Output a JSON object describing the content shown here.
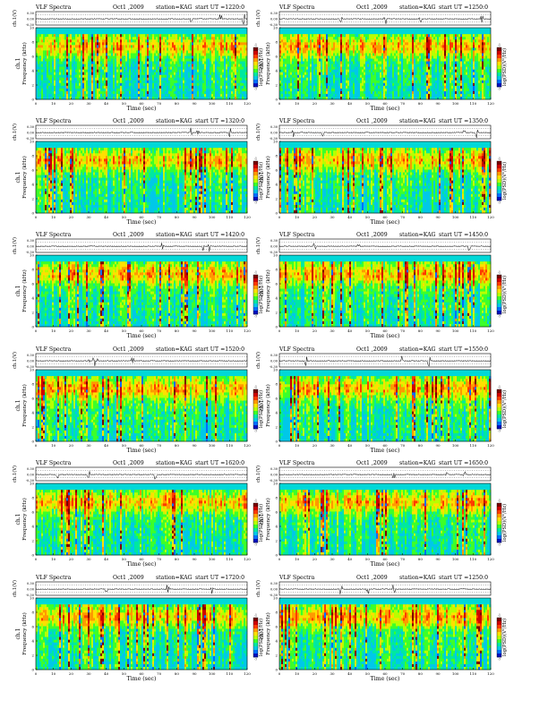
{
  "page": {
    "background": "#ffffff"
  },
  "colors": {
    "colorbar": [
      "#7a0000",
      "#d00000",
      "#ff3a00",
      "#ff9a00",
      "#ffe000",
      "#b8ff00",
      "#3cff2a",
      "#00e8a0",
      "#00c8e8",
      "#0070ff",
      "#0010c0"
    ],
    "trace": "#000000",
    "bg_band": "#00d8d8"
  },
  "chart_data": [
    {
      "type": "heatmap",
      "title": "VLF Spectra",
      "date": "Oct1 ,2009",
      "station": "station=KAG",
      "start": "start UT =1220:0",
      "xlabel": "Time (sec)",
      "ylabel": "Frequency (kHz)",
      "ch_label": "ch.1",
      "trace_label": "ch.1(V)",
      "cb_label": "log(PSD)(V²/Hz)",
      "xlim": [
        0,
        120
      ],
      "ylim": [
        0,
        10
      ],
      "xticks": [
        "0",
        "10",
        "20",
        "30",
        "40",
        "50",
        "60",
        "70",
        "80",
        "90",
        "100",
        "110",
        "120"
      ],
      "yticks": [
        "0",
        "2",
        "4",
        "6",
        "8",
        "10"
      ],
      "trace_ticks": [
        "0.30",
        "0.00",
        "-0.30"
      ],
      "trace_ylim": [
        -0.3,
        0.3
      ],
      "cb_ticks": [
        "-1",
        "-7"
      ],
      "cb_ticks_top": [
        "-1",
        ""
      ],
      "spikes_x": [
        88,
        105,
        118
      ]
    },
    {
      "type": "heatmap",
      "title": "VLF Spectra",
      "date": "Oct1 ,2009",
      "station": "station=KAG",
      "start": "start UT =1250:0",
      "xlabel": "Time (sec)",
      "ylabel": "Frequency (kHz)",
      "ch_label": "ch.1",
      "trace_label": "ch.1(V)",
      "cb_label": "log(PSD)(V²/Hz)",
      "xlim": [
        0,
        120
      ],
      "ylim": [
        0,
        10
      ],
      "xticks": [
        "0",
        "10",
        "20",
        "30",
        "40",
        "50",
        "60",
        "70",
        "80",
        "90",
        "100",
        "110",
        "120"
      ],
      "yticks": [
        "0",
        "2",
        "4",
        "6",
        "8",
        "10"
      ],
      "trace_ticks": [
        "0.30",
        "0.00",
        "-0.30"
      ],
      "trace_ylim": [
        -0.3,
        0.3
      ],
      "cb_ticks": [
        "-1",
        "-7"
      ],
      "cb_ticks_top": [
        "-1",
        ""
      ],
      "spikes_x": [
        35,
        60,
        80,
        115
      ]
    },
    {
      "type": "heatmap",
      "title": "VLF Spectra",
      "date": "Oct1 ,2009",
      "station": "station=KAG",
      "start": "start UT =1320:0",
      "xlabel": "Time (sec)",
      "ylabel": "Frequency (kHz)",
      "ch_label": "ch.1",
      "trace_label": "ch.1(V)",
      "cb_label": "log(PSD)(V²/Hz)",
      "xlim": [
        0,
        120
      ],
      "ylim": [
        0,
        10
      ],
      "xticks": [
        "0",
        "10",
        "20",
        "30",
        "40",
        "50",
        "60",
        "70",
        "80",
        "90",
        "100",
        "110",
        "120"
      ],
      "yticks": [
        "0",
        "2",
        "4",
        "6",
        "8",
        "10"
      ],
      "trace_ticks": [
        "0.30",
        "0.00",
        "-0.30"
      ],
      "trace_ylim": [
        -0.3,
        0.3
      ],
      "cb_ticks": [
        "-1",
        "-7"
      ],
      "cb_ticks_top": [
        "-1",
        ""
      ],
      "spikes_x": [
        88,
        92,
        110
      ]
    },
    {
      "type": "heatmap",
      "title": "VLF Spectra",
      "date": "Oct1 ,2009",
      "station": "station=KAG",
      "start": "start UT =1350:0",
      "xlabel": "Time (sec)",
      "ylabel": "Frequency (kHz)",
      "ch_label": "ch.1",
      "trace_label": "ch.1(V)",
      "cb_label": "log(PSD)(V²/Hz)",
      "xlim": [
        0,
        120
      ],
      "ylim": [
        0,
        10
      ],
      "xticks": [
        "0",
        "10",
        "20",
        "30",
        "40",
        "50",
        "60",
        "70",
        "80",
        "90",
        "100",
        "110",
        "120"
      ],
      "yticks": [
        "0",
        "2",
        "4",
        "6",
        "8",
        "10"
      ],
      "trace_ticks": [
        "0.30",
        "0.00",
        "-0.30"
      ],
      "trace_ylim": [
        -0.3,
        0.3
      ],
      "cb_ticks": [
        "-1",
        "-7"
      ],
      "cb_ticks_top": [
        "-1",
        ""
      ],
      "spikes_x": [
        8,
        25,
        105,
        112
      ]
    },
    {
      "type": "heatmap",
      "title": "VLF Spectra",
      "date": "Oct1 ,2009",
      "station": "station=KAG",
      "start": "start UT =1420:0",
      "xlabel": "Time (sec)",
      "ylabel": "Frequency (kHz)",
      "ch_label": "ch.1",
      "trace_label": "ch.1(V)",
      "cb_label": "log(PSD)(V²/Hz)",
      "xlim": [
        0,
        120
      ],
      "ylim": [
        0,
        10
      ],
      "xticks": [
        "0",
        "10",
        "20",
        "30",
        "40",
        "50",
        "60",
        "70",
        "80",
        "90",
        "100",
        "110",
        "120"
      ],
      "yticks": [
        "0",
        "2",
        "4",
        "6",
        "8",
        "10"
      ],
      "trace_ticks": [
        "0.30",
        "0.00",
        "-0.30"
      ],
      "trace_ylim": [
        -0.3,
        0.3
      ],
      "cb_ticks": [
        "-1",
        "-7"
      ],
      "cb_ticks_top": [
        "-1",
        ""
      ],
      "spikes_x": [
        72,
        95,
        98
      ]
    },
    {
      "type": "heatmap",
      "title": "VLF Spectra",
      "date": "Oct1 ,2009",
      "station": "station=KAG",
      "start": "start UT =1450:0",
      "xlabel": "Time (sec)",
      "ylabel": "Frequency (kHz)",
      "ch_label": "ch.1",
      "trace_label": "ch.1(V)",
      "cb_label": "log(PSD)(V²/Hz)",
      "xlim": [
        0,
        120
      ],
      "ylim": [
        0,
        10
      ],
      "xticks": [
        "0",
        "10",
        "20",
        "30",
        "40",
        "50",
        "60",
        "70",
        "80",
        "90",
        "100",
        "110",
        "120"
      ],
      "yticks": [
        "0",
        "2",
        "4",
        "6",
        "8",
        "10"
      ],
      "trace_ticks": [
        "0.30",
        "0.00",
        "-0.30"
      ],
      "trace_ylim": [
        -0.3,
        0.3
      ],
      "cb_ticks": [
        "-1",
        "-7"
      ],
      "cb_ticks_top": [
        "-1",
        ""
      ],
      "spikes_x": [
        20,
        45,
        108
      ]
    },
    {
      "type": "heatmap",
      "title": "VLF Spectra",
      "date": "Oct1 ,2009",
      "station": "station=KAG",
      "start": "start UT =1520:0",
      "xlabel": "Time (sec)",
      "ylabel": "Frequency (kHz)",
      "ch_label": "ch.1",
      "trace_label": "ch.1(V)",
      "cb_label": "log(PSD)(V²/Hz)",
      "xlim": [
        0,
        120
      ],
      "ylim": [
        0,
        10
      ],
      "xticks": [
        "0",
        "10",
        "20",
        "30",
        "40",
        "50",
        "60",
        "70",
        "80",
        "90",
        "100",
        "110",
        "120"
      ],
      "yticks": [
        "0",
        "2",
        "4",
        "6",
        "8",
        "10"
      ],
      "trace_ticks": [
        "0.30",
        "0.00",
        "-0.30"
      ],
      "trace_ylim": [
        -0.3,
        0.3
      ],
      "cb_ticks": [
        "-1",
        "-7"
      ],
      "cb_ticks_top": [
        "-1",
        ""
      ],
      "spikes_x": [
        30,
        33,
        35,
        55
      ]
    },
    {
      "type": "heatmap",
      "title": "VLF Spectra",
      "date": "Oct1 ,2009",
      "station": "station=KAG",
      "start": "start UT =1550:0",
      "xlabel": "Time (sec)",
      "ylabel": "Frequency (kHz)",
      "ch_label": "ch.1",
      "trace_label": "ch.1(V)",
      "cb_label": "log(PSD)(V²/Hz)",
      "xlim": [
        0,
        120
      ],
      "ylim": [
        0,
        10
      ],
      "xticks": [
        "0",
        "10",
        "20",
        "30",
        "40",
        "50",
        "60",
        "70",
        "80",
        "90",
        "100",
        "110",
        "120"
      ],
      "yticks": [
        "0",
        "2",
        "4",
        "6",
        "8",
        "10"
      ],
      "trace_ticks": [
        "0.30",
        "0.00",
        "-0.30"
      ],
      "trace_ylim": [
        -0.3,
        0.3
      ],
      "cb_ticks": [
        "-1",
        "-7"
      ],
      "cb_ticks_top": [
        "-1",
        ""
      ],
      "spikes_x": [
        15,
        70,
        85
      ]
    },
    {
      "type": "heatmap",
      "title": "VLF Spectra",
      "date": "Oct1 ,2009",
      "station": "station=KAG",
      "start": "start UT =1620:0",
      "xlabel": "Time (sec)",
      "ylabel": "Frequency (kHz)",
      "ch_label": "ch.1",
      "trace_label": "ch.1(V)",
      "cb_label": "log(PSD)(V²/Hz)",
      "xlim": [
        0,
        120
      ],
      "ylim": [
        0,
        10
      ],
      "xticks": [
        "0",
        "10",
        "20",
        "30",
        "40",
        "50",
        "60",
        "70",
        "80",
        "90",
        "100",
        "110",
        "120"
      ],
      "yticks": [
        "0",
        "2",
        "4",
        "6",
        "8",
        "10"
      ],
      "trace_ticks": [
        "0.30",
        "0.00",
        "-0.30"
      ],
      "trace_ylim": [
        -0.3,
        0.3
      ],
      "cb_ticks": [
        "-1",
        "-7"
      ],
      "cb_ticks_top": [
        "-1",
        ""
      ],
      "spikes_x": [
        12,
        30,
        68
      ]
    },
    {
      "type": "heatmap",
      "title": "VLF Spectra",
      "date": "Oct1 ,2009",
      "station": "station=KAG",
      "start": "start UT =1650:0",
      "xlabel": "Time (sec)",
      "ylabel": "Frequency (kHz)",
      "ch_label": "ch.1",
      "trace_label": "ch.1(V)",
      "cb_label": "log(PSD)(V²/Hz)",
      "xlim": [
        0,
        120
      ],
      "ylim": [
        0,
        10
      ],
      "xticks": [
        "0",
        "10",
        "20",
        "30",
        "40",
        "50",
        "60",
        "70",
        "80",
        "90",
        "100",
        "110",
        "120"
      ],
      "yticks": [
        "0",
        "2",
        "4",
        "6",
        "8",
        "10"
      ],
      "trace_ticks": [
        "0.30",
        "0.00",
        "-0.30"
      ],
      "trace_ylim": [
        -0.3,
        0.3
      ],
      "cb_ticks": [
        "-1",
        "-7"
      ],
      "cb_ticks_top": [
        "-1",
        ""
      ],
      "spikes_x": [
        65,
        95,
        105
      ]
    },
    {
      "type": "heatmap",
      "title": "VLF Spectra",
      "date": "Oct1 ,2009",
      "station": "station=KAG",
      "start": "start UT =1720:0",
      "xlabel": "Time (sec)",
      "ylabel": "Frequency (kHz)",
      "ch_label": "ch.1",
      "trace_label": "ch.1(V)",
      "cb_label": "log(PSD)(V²/Hz)",
      "xlim": [
        0,
        120
      ],
      "ylim": [
        0,
        10
      ],
      "xticks": [
        "0",
        "10",
        "20",
        "30",
        "40",
        "50",
        "60",
        "70",
        "80",
        "90",
        "100",
        "110",
        "120"
      ],
      "yticks": [
        "0",
        "2",
        "4",
        "6",
        "8",
        "10"
      ],
      "trace_ticks": [
        "0.30",
        "0.00",
        "-0.30"
      ],
      "trace_ylim": [
        -0.3,
        0.3
      ],
      "cb_ticks": [
        "-1",
        "-7"
      ],
      "cb_ticks_top": [
        "-1",
        ""
      ],
      "spikes_x": [
        40,
        75,
        100
      ]
    },
    {
      "type": "heatmap",
      "title": "VLF Spectra",
      "date": "Oct1 ,2009",
      "station": "station=KAG",
      "start": "start UT =1250:0",
      "xlabel": "Time (sec)",
      "ylabel": "Frequency (kHz)",
      "ch_label": "ch.1",
      "trace_label": "ch.1(V)",
      "cb_label": "log(PSD)(V²/Hz)",
      "xlim": [
        0,
        120
      ],
      "ylim": [
        0,
        10
      ],
      "xticks": [
        "0",
        "10",
        "20",
        "30",
        "40",
        "50",
        "60",
        "70",
        "80",
        "90",
        "100",
        "110",
        "120"
      ],
      "yticks": [
        "0",
        "2",
        "4",
        "6",
        "8",
        "10"
      ],
      "trace_ticks": [
        "0.30",
        "0.00",
        "-0.30"
      ],
      "trace_ylim": [
        -0.3,
        0.3
      ],
      "cb_ticks": [
        "-1",
        "-7"
      ],
      "cb_ticks_top": [
        "-1",
        ""
      ],
      "spikes_x": [
        35,
        50,
        65
      ]
    }
  ]
}
